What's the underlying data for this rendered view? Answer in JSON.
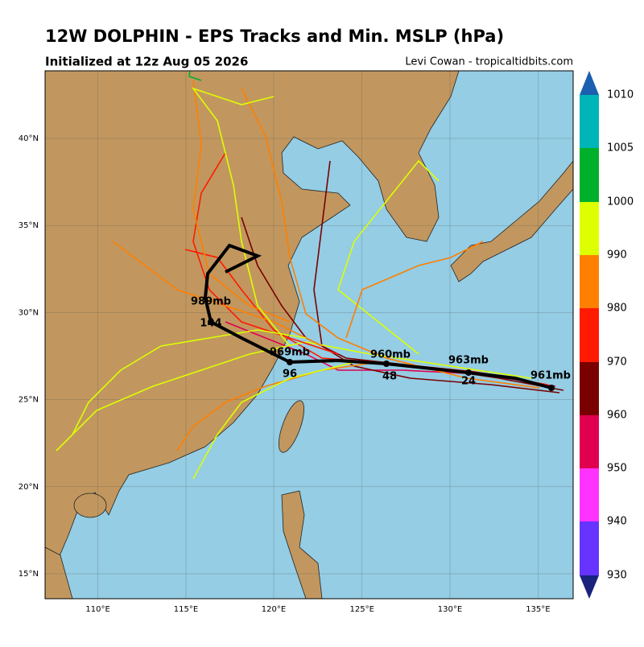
{
  "header": {
    "title": "12W DOLPHIN - EPS Tracks and Min. MSLP (hPa)",
    "subtitle": "Initialized at 12z Aug 05 2026",
    "credit": "Levi Cowan - tropicaltidbits.com"
  },
  "map": {
    "lat_labels": [
      "15°N",
      "20°N",
      "25°N",
      "30°N",
      "35°N",
      "40°N"
    ],
    "lon_labels": [
      "110°E",
      "115°E",
      "120°E",
      "125°E",
      "130°E",
      "135°E"
    ],
    "mean_track_labels": [
      "961mb",
      "24",
      "963mb",
      "48",
      "960mb",
      "96",
      "969mb",
      "144",
      "989mb"
    ]
  },
  "colorbar": {
    "labels": [
      "1010",
      "1005",
      "1000",
      "990",
      "980",
      "970",
      "960",
      "950",
      "940",
      "930"
    ]
  }
}
